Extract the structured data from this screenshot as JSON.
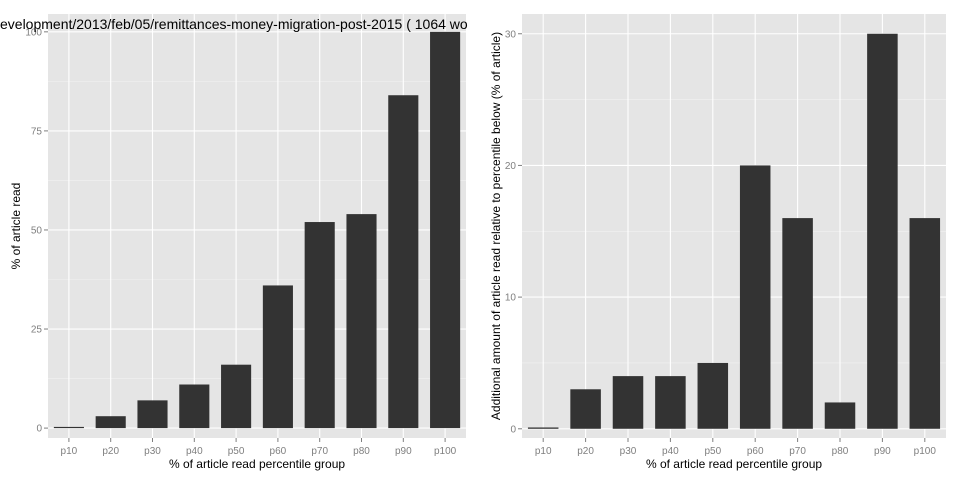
{
  "colors": {
    "panel": "#e5e5e5",
    "bar": "#333333",
    "grid": "#ffffff",
    "tick_text": "#7f7f7f"
  },
  "chart_data": [
    {
      "type": "bar",
      "title": "evelopment/2013/feb/05/remittances-money-migration-post-2015 ( 1064 wo",
      "xlabel": "% of article read percentile group",
      "ylabel": "% of article read",
      "categories": [
        "p10",
        "p20",
        "p30",
        "p40",
        "p50",
        "p60",
        "p70",
        "p80",
        "p90",
        "p100"
      ],
      "values": [
        0.3,
        3,
        7,
        11,
        16,
        36,
        52,
        54,
        84,
        100
      ],
      "ylim": [
        -2.5,
        104.5
      ],
      "yticks": [
        0,
        25,
        50,
        75,
        100
      ],
      "ytick_labels": [
        "0",
        "25",
        "50",
        "75",
        "100"
      ],
      "grid": true,
      "legend": "none"
    },
    {
      "type": "bar",
      "title": "",
      "xlabel": "% of article read percentile group",
      "ylabel": "Additional amount of article read relative to percentile below (% of article)",
      "categories": [
        "p10",
        "p20",
        "p30",
        "p40",
        "p50",
        "p60",
        "p70",
        "p80",
        "p90",
        "p100"
      ],
      "values": [
        0.1,
        3,
        4,
        4,
        5,
        20,
        16,
        2,
        30,
        16
      ],
      "ylim": [
        -0.7,
        31.5
      ],
      "yticks": [
        0,
        10,
        20,
        30
      ],
      "ytick_labels": [
        "0",
        "10",
        "20",
        "30"
      ],
      "grid": true,
      "legend": "none"
    }
  ]
}
